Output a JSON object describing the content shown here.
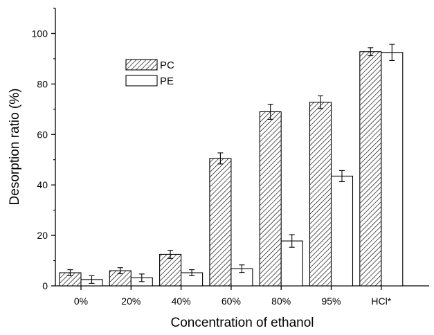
{
  "chart_data": {
    "type": "bar",
    "xlabel": "Concentration of ethanol",
    "ylabel": "Desorption ratio (%)",
    "ylim": [
      0,
      110
    ],
    "yticks": [
      0,
      20,
      40,
      60,
      80,
      100
    ],
    "categories": [
      "0%",
      "20%",
      "40%",
      "60%",
      "80%",
      "95%",
      "HCl*"
    ],
    "series": [
      {
        "name": "PC",
        "fill": "hatched",
        "values": [
          5.2,
          6.0,
          12.5,
          50.5,
          69.0,
          72.8,
          92.8
        ],
        "errors": [
          1.2,
          1.2,
          1.6,
          2.2,
          3.0,
          2.5,
          1.6
        ]
      },
      {
        "name": "PE",
        "fill": "white",
        "values": [
          2.5,
          3.2,
          5.2,
          6.8,
          17.8,
          43.5,
          92.5
        ],
        "errors": [
          1.5,
          1.5,
          1.2,
          1.5,
          2.5,
          2.2,
          3.2
        ]
      }
    ],
    "legend": "upper-left",
    "grid": false,
    "colors": {
      "stroke": "#000000",
      "hatch": "#000000",
      "background": "#ffffff"
    }
  }
}
